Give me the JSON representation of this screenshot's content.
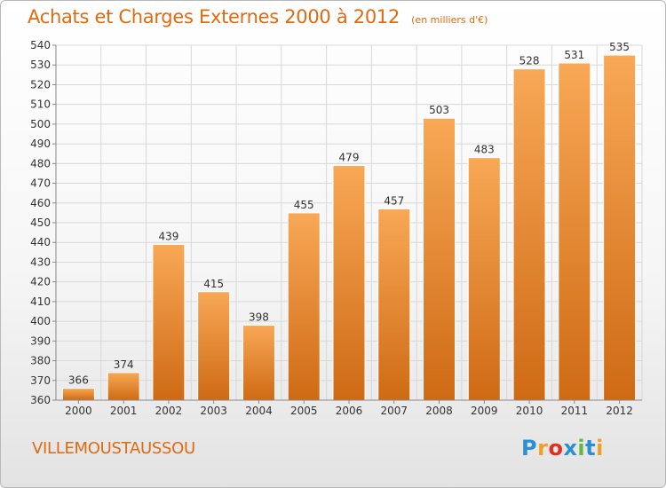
{
  "title": "Achats et Charges Externes 2000 à 2012",
  "unit": "(en milliers d'€)",
  "place": "VILLEMOUSTAUSSOU",
  "logo": {
    "letters": [
      "P",
      "r",
      "o",
      "x",
      "i",
      "t",
      "i"
    ],
    "colors": [
      "#2a8fd6",
      "#f0a020",
      "#e03020",
      "#2a8fd6",
      "#62b83a",
      "#2a8fd6",
      "#f0a020"
    ]
  },
  "chart_data": {
    "type": "bar",
    "title": "Achats et Charges Externes 2000 à 2012",
    "categories": [
      "2000",
      "2001",
      "2002",
      "2003",
      "2004",
      "2005",
      "2006",
      "2007",
      "2008",
      "2009",
      "2010",
      "2011",
      "2012"
    ],
    "values": [
      366,
      374,
      439,
      415,
      398,
      455,
      479,
      457,
      503,
      483,
      528,
      531,
      535
    ],
    "ylim": [
      360,
      540
    ],
    "yticks": [
      360,
      370,
      380,
      390,
      400,
      410,
      420,
      430,
      440,
      450,
      460,
      470,
      480,
      490,
      500,
      510,
      520,
      530,
      540
    ],
    "grid": true,
    "colors": {
      "bar_top": "#f8a856",
      "bar_bottom": "#cf6a14",
      "bar_edge": "#ffffff",
      "grid": "#d8d8d8",
      "text": "#333333"
    }
  }
}
